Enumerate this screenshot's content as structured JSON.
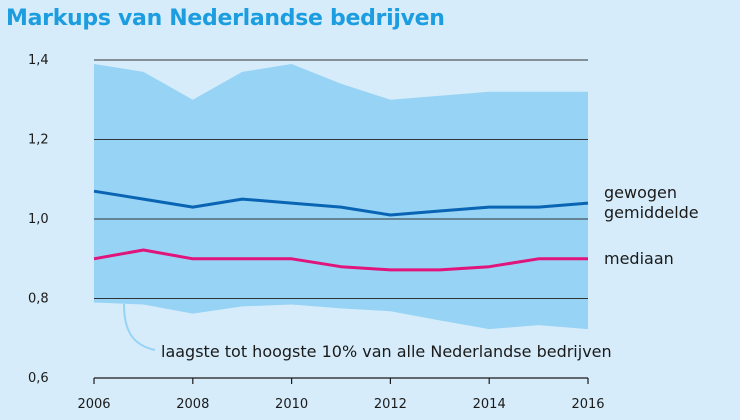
{
  "chart_data": {
    "type": "line",
    "title": "Markups van Nederlandse bedrijven",
    "x": [
      2006,
      2007,
      2008,
      2009,
      2010,
      2011,
      2012,
      2013,
      2014,
      2015,
      2016
    ],
    "xticks": [
      "2006",
      "2008",
      "2010",
      "2012",
      "2014",
      "2016"
    ],
    "yticks": [
      "0,6",
      "0,8",
      "1,0",
      "1,2",
      "1,4"
    ],
    "ylim": [
      0.6,
      1.4
    ],
    "xlim": [
      2006,
      2016
    ],
    "grid": true,
    "band": {
      "name": "laagste tot hoogste 10% van alle Nederlandse bedrijven",
      "color": "#96d3f5",
      "upper": [
        1.39,
        1.37,
        1.3,
        1.37,
        1.39,
        1.34,
        1.3,
        1.31,
        1.32,
        1.32,
        1.32
      ],
      "lower": [
        0.79,
        0.785,
        0.762,
        0.78,
        0.785,
        0.775,
        0.768,
        0.745,
        0.723,
        0.733,
        0.723
      ]
    },
    "series": [
      {
        "name_lines": [
          "gewogen",
          "gemiddelde"
        ],
        "color": "#0a64b4",
        "values": [
          1.07,
          1.05,
          1.03,
          1.05,
          1.04,
          1.03,
          1.01,
          1.02,
          1.03,
          1.03,
          1.04
        ]
      },
      {
        "name_lines": [
          "mediaan"
        ],
        "color": "#e0147a",
        "values": [
          0.9,
          0.922,
          0.9,
          0.9,
          0.9,
          0.88,
          0.872,
          0.872,
          0.88,
          0.9,
          0.9
        ]
      }
    ]
  }
}
